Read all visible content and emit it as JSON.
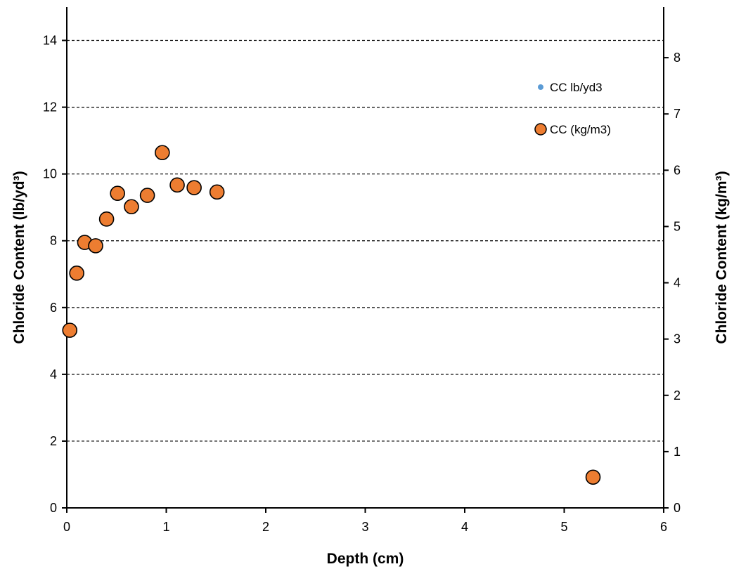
{
  "chart_data": {
    "type": "scatter",
    "title": "",
    "xlabel": "Depth (cm)",
    "ylabel_left": "Chloride Content (lb/yd³)",
    "ylabel_right": "Chloride Content (kg/m³)",
    "xlim": [
      0,
      6
    ],
    "ylim_left": [
      0,
      15
    ],
    "ylim_right": [
      0,
      8.9
    ],
    "x_ticks": [
      0,
      1,
      2,
      3,
      4,
      5,
      6
    ],
    "y_left_ticks": [
      0,
      2,
      4,
      6,
      8,
      10,
      12,
      14
    ],
    "y_right_ticks": [
      0,
      1,
      2,
      3,
      4,
      5,
      6,
      7,
      8
    ],
    "grid": "horizontal dashed",
    "legend_position": "top-right",
    "series": [
      {
        "name": "CC lb/yd3",
        "axis": "left",
        "marker": "small-dot",
        "color": "#5b9bd5",
        "points": []
      },
      {
        "name": "CC (kg/m3)",
        "axis": "left",
        "marker": "circle",
        "color": "#ed7d31",
        "points": [
          {
            "x": 0.03,
            "y": 5.32
          },
          {
            "x": 0.1,
            "y": 7.03
          },
          {
            "x": 0.18,
            "y": 7.95
          },
          {
            "x": 0.29,
            "y": 7.85
          },
          {
            "x": 0.4,
            "y": 8.65
          },
          {
            "x": 0.51,
            "y": 9.42
          },
          {
            "x": 0.65,
            "y": 9.02
          },
          {
            "x": 0.81,
            "y": 9.36
          },
          {
            "x": 0.96,
            "y": 10.64
          },
          {
            "x": 1.11,
            "y": 9.67
          },
          {
            "x": 1.28,
            "y": 9.59
          },
          {
            "x": 1.51,
            "y": 9.46
          },
          {
            "x": 5.29,
            "y": 0.92
          }
        ]
      }
    ]
  }
}
